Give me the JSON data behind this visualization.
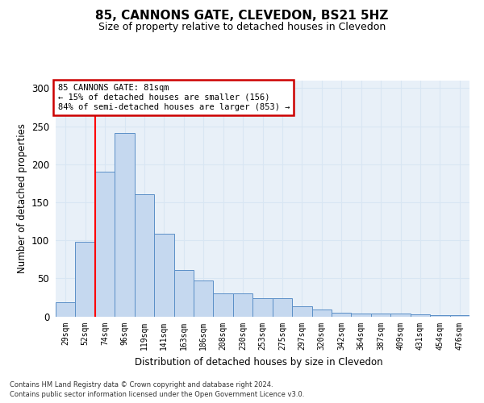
{
  "title": "85, CANNONS GATE, CLEVEDON, BS21 5HZ",
  "subtitle": "Size of property relative to detached houses in Clevedon",
  "xlabel": "Distribution of detached houses by size in Clevedon",
  "ylabel": "Number of detached properties",
  "categories": [
    "29sqm",
    "52sqm",
    "74sqm",
    "96sqm",
    "119sqm",
    "141sqm",
    "163sqm",
    "186sqm",
    "208sqm",
    "230sqm",
    "253sqm",
    "275sqm",
    "297sqm",
    "320sqm",
    "342sqm",
    "364sqm",
    "387sqm",
    "409sqm",
    "431sqm",
    "454sqm",
    "476sqm"
  ],
  "values": [
    19,
    98,
    190,
    241,
    161,
    109,
    61,
    47,
    30,
    30,
    24,
    24,
    13,
    9,
    5,
    4,
    4,
    4,
    3,
    2,
    2
  ],
  "bar_color": "#c5d8ef",
  "bar_edge_color": "#5b8fc7",
  "red_line_x": 1.5,
  "annotation_text": "85 CANNONS GATE: 81sqm\n← 15% of detached houses are smaller (156)\n84% of semi-detached houses are larger (853) →",
  "annotation_box_facecolor": "#ffffff",
  "annotation_box_edgecolor": "#cc0000",
  "ylim": [
    0,
    310
  ],
  "yticks": [
    0,
    50,
    100,
    150,
    200,
    250,
    300
  ],
  "grid_color": "#d8e6f3",
  "background_color": "#e8f0f8",
  "title_fontsize": 11,
  "subtitle_fontsize": 9,
  "footnote1": "Contains HM Land Registry data © Crown copyright and database right 2024.",
  "footnote2": "Contains public sector information licensed under the Open Government Licence v3.0."
}
